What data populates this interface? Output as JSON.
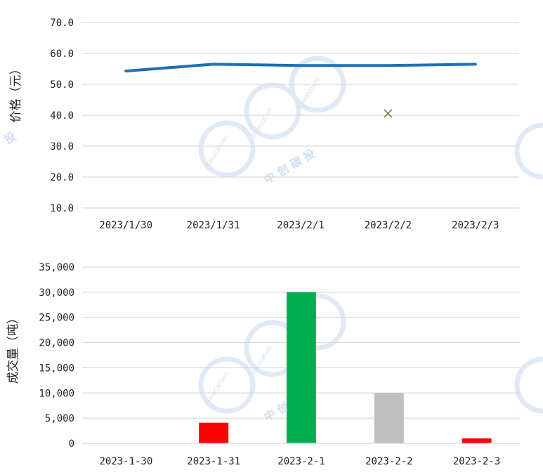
{
  "chart_data": [
    {
      "type": "line",
      "title": "",
      "ylabel": "价格（元）",
      "xlabel": "",
      "ylim": [
        10,
        70
      ],
      "ytick_labels": [
        "70.0",
        "60.0",
        "50.0",
        "40.0",
        "30.0",
        "20.0",
        "10.0"
      ],
      "categories": [
        "2023/1/30",
        "2023/1/31",
        "2023/2/1",
        "2023/2/2",
        "2023/2/3"
      ],
      "series": [
        {
          "values": [
            54.3,
            56.5,
            56.1,
            56.1,
            56.5
          ],
          "color": "#1f6fb5",
          "marker": "none"
        },
        {
          "values": [
            null,
            null,
            null,
            40.6,
            null
          ],
          "color": "#8c7d52",
          "marker": "x"
        }
      ],
      "grid": true
    },
    {
      "type": "bar",
      "title": "",
      "ylabel": "成交量（吨）",
      "xlabel": "",
      "ylim": [
        0,
        35000
      ],
      "ytick_labels": [
        "35,000",
        "30,000",
        "25,000",
        "20,000",
        "15,000",
        "10,000",
        "5,000",
        "0"
      ],
      "categories": [
        "2023-1-30",
        "2023-1-31",
        "2023-2-1",
        "2023-2-2",
        "2023-2-3"
      ],
      "values": [
        0,
        4100,
        30000,
        10000,
        1000
      ],
      "colors": [
        "#ff0000",
        "#ff0000",
        "#00b050",
        "#bfbfbf",
        "#ff0000"
      ],
      "grid": true
    }
  ],
  "watermark": {
    "text_en_1": "SinoCarbon",
    "text_en_2": "Innovation",
    "text_en_3": "Investment",
    "text_cn": "中 创 碳 投",
    "text_cn_edge": "投",
    "color": "#dfeaf6"
  }
}
